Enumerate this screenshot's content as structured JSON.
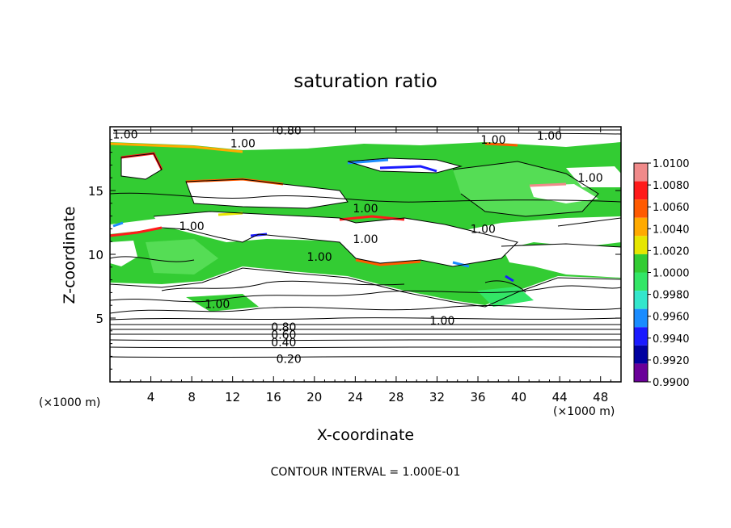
{
  "chart_data": {
    "type": "heatmap",
    "title": "saturation ratio",
    "xlabel": "X-coordinate",
    "ylabel": "Z-coordinate",
    "x_unit": "(×1000 m)",
    "x_unit_right": "(×1000 m)",
    "xlim": [
      0,
      50
    ],
    "ylim": [
      0,
      20
    ],
    "x_ticks": [
      4,
      8,
      12,
      16,
      20,
      24,
      28,
      32,
      36,
      40,
      44,
      48
    ],
    "y_ticks": [
      5,
      10,
      15
    ],
    "colorbar": {
      "levels": [
        "1.0100",
        "1.0080",
        "1.0060",
        "1.0040",
        "1.0020",
        "1.0000",
        "0.9980",
        "0.9960",
        "0.9940",
        "0.9920",
        "0.9900"
      ],
      "colors": [
        "#f08a8a",
        "#ff1a1a",
        "#ff5a00",
        "#ffaa00",
        "#e6e600",
        "#33cc33",
        "#33e666",
        "#33e6cc",
        "#1a8cff",
        "#1a1aff",
        "#0000a0",
        "#6a0099"
      ]
    },
    "contour_labels": [
      {
        "text": "1.00",
        "x": 1.5,
        "y": 19.4
      },
      {
        "text": "1.00",
        "x": 13,
        "y": 18.7
      },
      {
        "text": "0.80",
        "x": 17.5,
        "y": 19.7
      },
      {
        "text": "1.00",
        "x": 37.5,
        "y": 19.0
      },
      {
        "text": "1.00",
        "x": 43,
        "y": 19.3
      },
      {
        "text": "1.00",
        "x": 47,
        "y": 16.0
      },
      {
        "text": "1.00",
        "x": 25,
        "y": 13.6
      },
      {
        "text": "1.00",
        "x": 36.5,
        "y": 12.0
      },
      {
        "text": "1.00",
        "x": 8,
        "y": 12.2
      },
      {
        "text": "1.00",
        "x": 25,
        "y": 11.2
      },
      {
        "text": "1.00",
        "x": 20.5,
        "y": 9.8
      },
      {
        "text": "1.00",
        "x": 10.5,
        "y": 6.1
      },
      {
        "text": "1.00",
        "x": 32.5,
        "y": 4.8
      },
      {
        "text": "0.80",
        "x": 17,
        "y": 4.3
      },
      {
        "text": "0.60",
        "x": 17,
        "y": 3.7
      },
      {
        "text": "0.40",
        "x": 17,
        "y": 3.1
      },
      {
        "text": "0.20",
        "x": 17.5,
        "y": 1.8
      }
    ],
    "contour_interval": "CONTOUR INTERVAL = 1.000E-01"
  }
}
